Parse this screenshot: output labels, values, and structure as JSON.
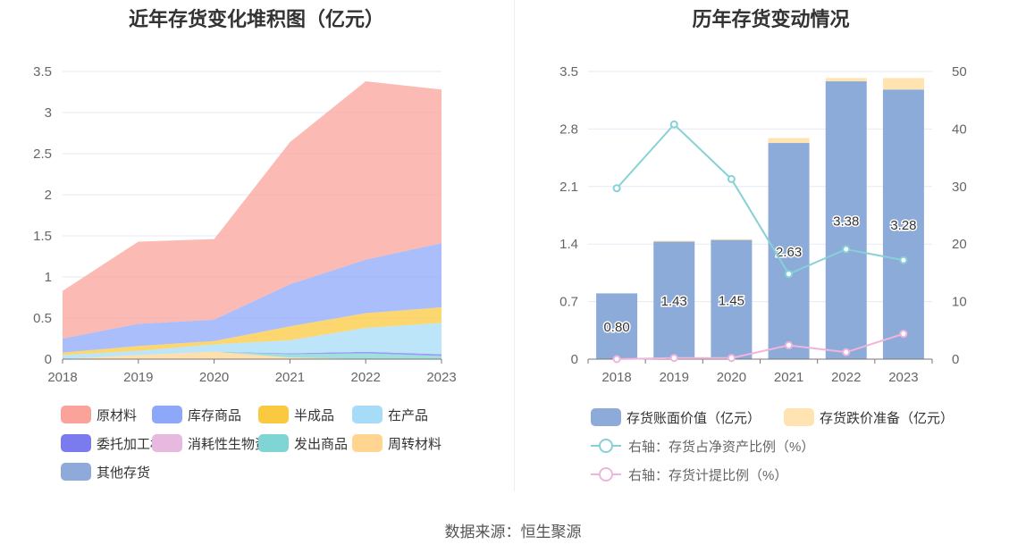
{
  "source": "数据来源：恒生聚源",
  "chart_data": [
    {
      "type": "area",
      "stacked": true,
      "title": "近年存货变化堆积图（亿元）",
      "x": [
        "2018",
        "2019",
        "2020",
        "2021",
        "2022",
        "2023"
      ],
      "ylim": [
        0,
        3.5
      ],
      "yticks": [
        "0",
        "0.5",
        "1",
        "1.5",
        "2",
        "2.5",
        "3",
        "3.5"
      ],
      "grid": true,
      "legend_position": "bottom",
      "series": [
        {
          "name": "周转材料",
          "color": "#ffd591",
          "values": [
            0.0,
            0.05,
            0.09,
            0.02,
            0.0,
            0.0
          ]
        },
        {
          "name": "发出商品",
          "color": "#7fd4d4",
          "values": [
            0.0,
            0.0,
            0.0,
            0.04,
            0.07,
            0.04
          ]
        },
        {
          "name": "消耗性生物资产",
          "color": "#e8b9de",
          "values": [
            0.0,
            0.0,
            0.0,
            0.0,
            0.0,
            0.0
          ]
        },
        {
          "name": "委托加工材料",
          "color": "#7b7bf0",
          "values": [
            0.0,
            0.0,
            0.0,
            0.01,
            0.02,
            0.02
          ]
        },
        {
          "name": "其他存货",
          "color": "#8faad8",
          "values": [
            0.0,
            0.0,
            0.0,
            0.0,
            0.0,
            0.0
          ]
        },
        {
          "name": "在产品",
          "color": "#a6dcf7",
          "values": [
            0.05,
            0.05,
            0.09,
            0.16,
            0.29,
            0.38
          ]
        },
        {
          "name": "半成品",
          "color": "#fbc940",
          "values": [
            0.03,
            0.06,
            0.04,
            0.17,
            0.18,
            0.19
          ]
        },
        {
          "name": "库存商品",
          "color": "#8ea8f9",
          "values": [
            0.17,
            0.27,
            0.26,
            0.51,
            0.65,
            0.78
          ]
        },
        {
          "name": "原材料",
          "color": "#f9a39b",
          "values": [
            0.58,
            1.0,
            0.98,
            1.73,
            2.17,
            1.87
          ]
        }
      ],
      "legend_order": [
        "原材料",
        "库存商品",
        "半成品",
        "在产品",
        "委托加工材料",
        "消耗性生物资产",
        "发出商品",
        "周转材料",
        "其他存货"
      ]
    },
    {
      "type": "bar",
      "stacked": true,
      "title": "历年存货变动情况",
      "x": [
        "2018",
        "2019",
        "2020",
        "2021",
        "2022",
        "2023"
      ],
      "ylim": [
        0,
        3.5
      ],
      "yticks": [
        "0",
        "0.7",
        "1.4",
        "2.1",
        "2.8",
        "3.5"
      ],
      "y2lim": [
        0,
        50
      ],
      "y2ticks": [
        "0",
        "10",
        "20",
        "30",
        "40",
        "50"
      ],
      "grid": true,
      "legend_position": "bottom",
      "series": [
        {
          "name": "存货账面价值（亿元）",
          "kind": "bar",
          "axis": "left",
          "color": "#8dabd9",
          "values": [
            0.8,
            1.43,
            1.45,
            2.63,
            3.38,
            3.28
          ],
          "labels": [
            "0.80",
            "1.43",
            "1.45",
            "2.63",
            "3.38",
            "3.28"
          ]
        },
        {
          "name": "存货跌价准备（亿元）",
          "kind": "bar",
          "axis": "left",
          "color": "#ffe3b0",
          "values": [
            0.0,
            0.01,
            0.01,
            0.06,
            0.04,
            0.14
          ]
        },
        {
          "name": "右轴：存货占净资产比例（%）",
          "kind": "line",
          "axis": "right",
          "color": "#86d1d6",
          "values": [
            29.7,
            40.8,
            31.3,
            14.8,
            19.1,
            17.2
          ]
        },
        {
          "name": "右轴：存货计提比例（%）",
          "kind": "line",
          "axis": "right",
          "color": "#efb5dc",
          "values": [
            0.0,
            0.2,
            0.2,
            2.4,
            1.2,
            4.4
          ]
        }
      ]
    }
  ]
}
